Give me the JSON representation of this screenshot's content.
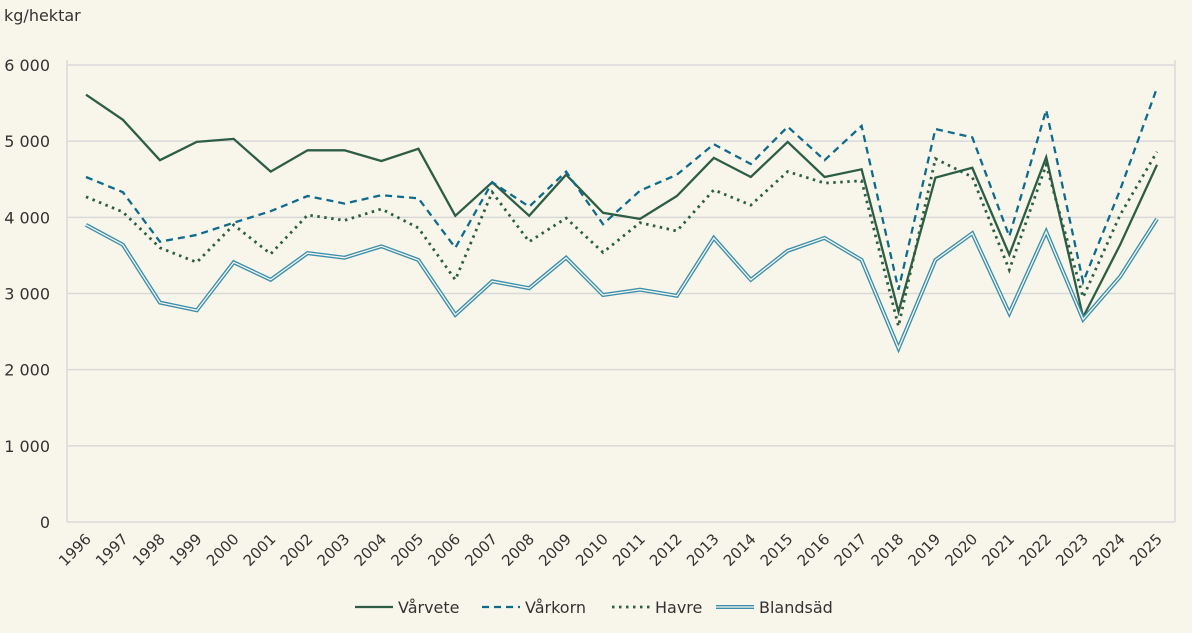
{
  "chart_data": {
    "type": "line",
    "ylabel": "kg/hektar",
    "xlabel": "",
    "ylim": [
      0,
      6000
    ],
    "yticks": [
      0,
      1000,
      2000,
      3000,
      4000,
      5000,
      6000
    ],
    "ytick_labels": [
      "0",
      "1 000",
      "2 000",
      "3 000",
      "4 000",
      "5 000",
      "6 000"
    ],
    "grid": true,
    "legend_position": "bottom",
    "x": [
      "1996",
      "1997",
      "1998",
      "1999",
      "2000",
      "2001",
      "2002",
      "2003",
      "2004",
      "2005",
      "2006",
      "2007",
      "2008",
      "2009",
      "2010",
      "2011",
      "2012",
      "2013",
      "2014",
      "2015",
      "2016",
      "2017",
      "2018",
      "2019",
      "2020",
      "2021",
      "2022",
      "2023",
      "2024",
      "2025"
    ],
    "series": [
      {
        "name": "Vårvete",
        "style": "solid",
        "color": "#2d5e45",
        "values": [
          5610,
          5280,
          4750,
          4990,
          5030,
          4600,
          4880,
          4880,
          4740,
          4900,
          4020,
          4460,
          4020,
          4560,
          4060,
          3980,
          4280,
          4780,
          4530,
          4990,
          4530,
          4630,
          2760,
          4520,
          4650,
          3510,
          4790,
          2690,
          3640,
          4690
        ]
      },
      {
        "name": "Vårkorn",
        "style": "dashed",
        "color": "#0f6b8c",
        "values": [
          4530,
          4330,
          3680,
          3770,
          3930,
          4080,
          4280,
          4180,
          4290,
          4250,
          3600,
          4460,
          4140,
          4600,
          3910,
          4350,
          4560,
          4960,
          4700,
          5190,
          4750,
          5200,
          3050,
          5160,
          5050,
          3750,
          5410,
          3150,
          4360,
          5700
        ]
      },
      {
        "name": "Havre",
        "style": "dotted",
        "color": "#2d5e45",
        "values": [
          4270,
          4070,
          3600,
          3410,
          3900,
          3520,
          4030,
          3960,
          4110,
          3860,
          3180,
          4330,
          3680,
          3990,
          3540,
          3930,
          3820,
          4360,
          4160,
          4600,
          4450,
          4480,
          2570,
          4770,
          4530,
          3310,
          4690,
          2950,
          4030,
          4860
        ]
      },
      {
        "name": "Blandsäd",
        "style": "double",
        "color": "#3a8fae",
        "values": [
          3900,
          3640,
          2880,
          2780,
          3410,
          3180,
          3530,
          3470,
          3620,
          3440,
          2720,
          3160,
          3070,
          3470,
          2980,
          3050,
          2970,
          3730,
          3180,
          3560,
          3730,
          3440,
          2280,
          3440,
          3790,
          2740,
          3810,
          2660,
          3220,
          3980
        ]
      }
    ]
  }
}
